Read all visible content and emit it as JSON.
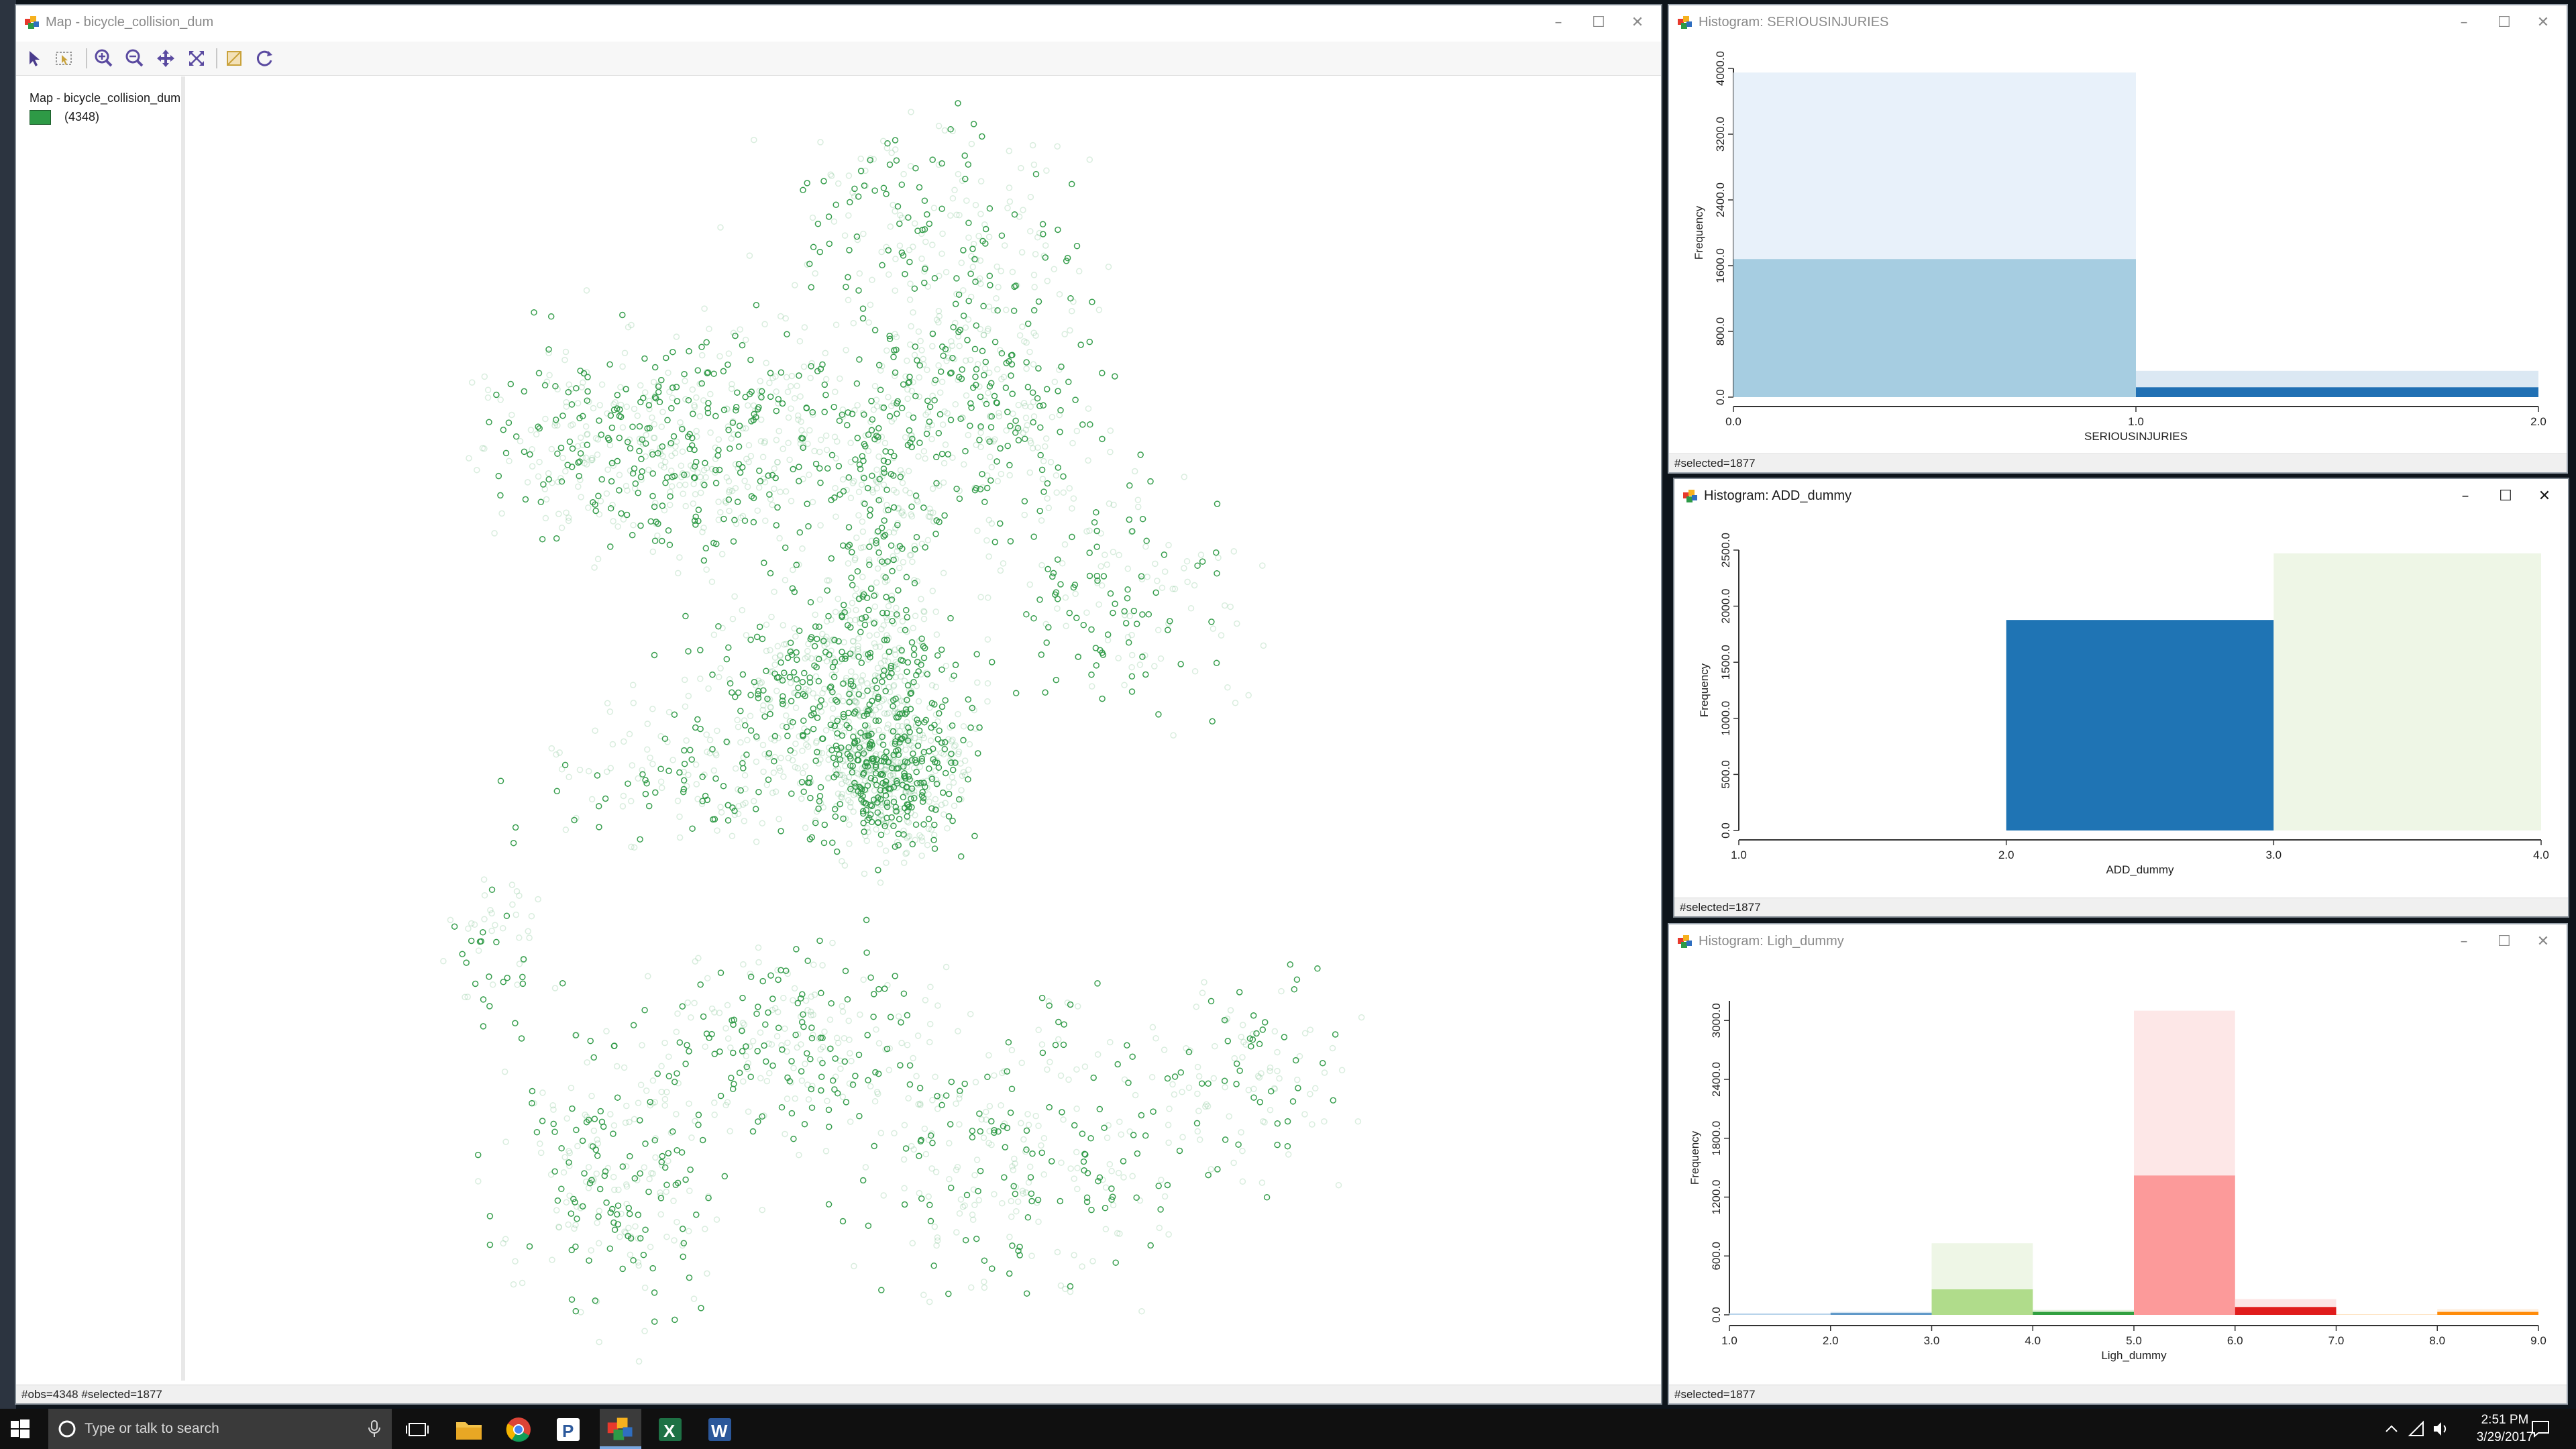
{
  "map_window": {
    "title": "Map - bicycle_collision_dum",
    "legend_title": "Map - bicycle_collision_dum",
    "legend_count": "(4348)",
    "point_color": "#2e9a46",
    "status": "#obs=4348 #selected=1877",
    "toolbar": [
      "select-icon",
      "select-area-icon",
      "zoom-in-icon",
      "zoom-out-icon",
      "pan-icon",
      "full-extent-icon",
      "selectable-fill-icon",
      "refresh-icon"
    ]
  },
  "hist1": {
    "title": "Histogram: SERIOUSINJURIES",
    "status": "#selected=1877",
    "chart_data": {
      "type": "bar",
      "xlabel": "SERIOUSINJURIES",
      "ylabel": "Frequency",
      "x_ticks": [
        "0.0",
        "1.0",
        "2.0"
      ],
      "y_ticks": [
        "0.0",
        "800.0",
        "1600.0",
        "2400.0",
        "3200.0",
        "4000.0"
      ],
      "xlim": [
        0,
        2
      ],
      "ylim": [
        0,
        4000
      ],
      "bins": [
        {
          "x0": 0,
          "x1": 1,
          "total": 3950,
          "selected": 1680,
          "total_color": "#e8f1fa",
          "selected_color": "#a6cde1"
        },
        {
          "x0": 1,
          "x1": 2,
          "total": 320,
          "selected": 120,
          "total_color": "#dbe8f3",
          "selected_color": "#2070b4"
        }
      ]
    }
  },
  "hist2": {
    "title": "Histogram: ADD_dummy",
    "status": "#selected=1877",
    "chart_data": {
      "type": "bar",
      "xlabel": "ADD_dummy",
      "ylabel": "Frequency",
      "x_ticks": [
        "1.0",
        "2.0",
        "3.0",
        "4.0"
      ],
      "y_ticks": [
        "0.0",
        "500.0",
        "1000.0",
        "1500.0",
        "2000.0",
        "2500.0"
      ],
      "xlim": [
        1,
        4
      ],
      "ylim": [
        0,
        2500
      ],
      "bins": [
        {
          "x0": 2,
          "x1": 3,
          "total": 1877,
          "selected": 1877,
          "total_color": "#dbe8f3",
          "selected_color": "#1f74b4"
        },
        {
          "x0": 3,
          "x1": 4,
          "total": 2471,
          "selected": 0,
          "total_color": "#eef6e6",
          "selected_color": "#8fcc6a"
        }
      ]
    }
  },
  "hist3": {
    "title": "Histogram: Ligh_dummy",
    "status": "#selected=1877",
    "chart_data": {
      "type": "bar",
      "xlabel": "Ligh_dummy",
      "ylabel": "Frequency",
      "x_ticks": [
        "1.0",
        "2.0",
        "3.0",
        "4.0",
        "5.0",
        "6.0",
        "7.0",
        "8.0",
        "9.0"
      ],
      "y_ticks": [
        "0.0",
        "600.0",
        "1200.0",
        "1800.0",
        "2400.0",
        "3000.0"
      ],
      "xlim": [
        1,
        9
      ],
      "ylim": [
        0,
        3200
      ],
      "bins": [
        {
          "x0": 1,
          "x1": 2,
          "total": 20,
          "selected": 10,
          "total_color": "#e4eef8",
          "selected_color": "#b8d4ea"
        },
        {
          "x0": 2,
          "x1": 3,
          "total": 30,
          "selected": 20,
          "total_color": "#d7e6f2",
          "selected_color": "#5f98c8"
        },
        {
          "x0": 3,
          "x1": 4,
          "total": 730,
          "selected": 260,
          "total_color": "#eef6e6",
          "selected_color": "#b0dc8b"
        },
        {
          "x0": 4,
          "x1": 5,
          "total": 50,
          "selected": 30,
          "total_color": "#e3f2dc",
          "selected_color": "#31a040"
        },
        {
          "x0": 5,
          "x1": 6,
          "total": 3100,
          "selected": 1420,
          "total_color": "#fde7e7",
          "selected_color": "#fc9a9a"
        },
        {
          "x0": 6,
          "x1": 7,
          "total": 160,
          "selected": 80,
          "total_color": "#fde4e4",
          "selected_color": "#e01c1c"
        },
        {
          "x0": 7,
          "x1": 8,
          "total": 5,
          "selected": 2,
          "total_color": "#fef0e2",
          "selected_color": "#fdbe6f"
        },
        {
          "x0": 8,
          "x1": 9,
          "total": 60,
          "selected": 30,
          "total_color": "#fef0e2",
          "selected_color": "#ff8c0a"
        }
      ]
    }
  },
  "taskbar": {
    "search_placeholder": "Type or talk to search",
    "time": "2:51 PM",
    "date": "3/29/2017"
  }
}
